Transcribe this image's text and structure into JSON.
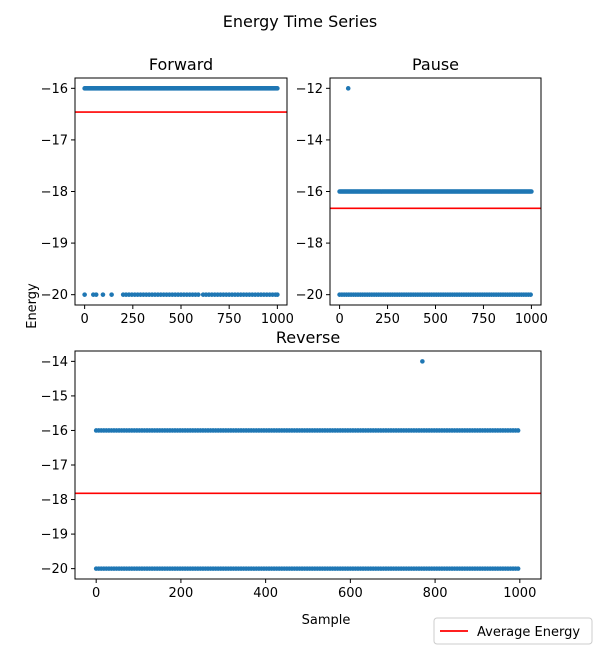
{
  "figure": {
    "suptitle": "Energy Time Series",
    "shared_ylabel": "Energy",
    "shared_xlabel": "Sample",
    "legend": {
      "label": "Average Energy",
      "placement": "lower-right",
      "color": "#ff0000"
    }
  },
  "colors": {
    "points": "#1f77b4",
    "average_line": "#ff0000"
  },
  "chart_data": [
    {
      "type": "scatter",
      "title": "Forward",
      "xlim": [
        -50,
        1050
      ],
      "ylim": [
        -20.2,
        -15.8
      ],
      "xticks": [
        0,
        250,
        500,
        750,
        1000
      ],
      "yticks": [
        -16,
        -17,
        -18,
        -19,
        -20
      ],
      "average_energy": -16.46,
      "levels": [
        {
          "y": -16,
          "x_start": 0,
          "x_end": 1000,
          "step": 5
        },
        {
          "y": -20,
          "x": [
            0,
            45,
            60,
            95,
            140,
            200,
            215,
            230,
            245,
            260,
            275,
            290,
            305,
            320,
            335,
            350,
            365,
            380,
            395,
            410,
            425,
            440,
            455,
            470,
            485,
            500,
            515,
            530,
            545,
            560,
            575,
            590,
            615,
            630,
            645,
            660,
            675,
            690,
            705,
            720,
            735,
            750,
            765,
            780,
            795,
            810,
            825,
            840,
            855,
            870,
            885,
            900,
            915,
            930,
            945,
            960,
            975,
            990,
            1000
          ]
        }
      ],
      "outliers": []
    },
    {
      "type": "scatter",
      "title": "Pause",
      "xlim": [
        -50,
        1050
      ],
      "ylim": [
        -20.4,
        -11.6
      ],
      "xticks": [
        0,
        250,
        500,
        750,
        1000
      ],
      "yticks": [
        -12,
        -14,
        -16,
        -18,
        -20
      ],
      "average_energy": -16.65,
      "levels": [
        {
          "y": -16,
          "x_start": 0,
          "x_end": 1000,
          "step": 5
        },
        {
          "y": -20,
          "x_start": 0,
          "x_end": 1000,
          "step": 12
        }
      ],
      "outliers": [
        {
          "x": 45,
          "y": -12
        }
      ]
    },
    {
      "type": "scatter",
      "title": "Reverse",
      "xlim": [
        -50,
        1050
      ],
      "ylim": [
        -20.3,
        -13.7
      ],
      "xticks": [
        0,
        200,
        400,
        600,
        800,
        1000
      ],
      "yticks": [
        -14,
        -15,
        -16,
        -17,
        -18,
        -19,
        -20
      ],
      "average_energy": -17.82,
      "levels": [
        {
          "y": -16,
          "x_start": 0,
          "x_end": 1000,
          "step": 6
        },
        {
          "y": -20,
          "x_start": 0,
          "x_end": 1000,
          "step": 6
        }
      ],
      "outliers": [
        {
          "x": 770,
          "y": -14
        }
      ]
    }
  ]
}
